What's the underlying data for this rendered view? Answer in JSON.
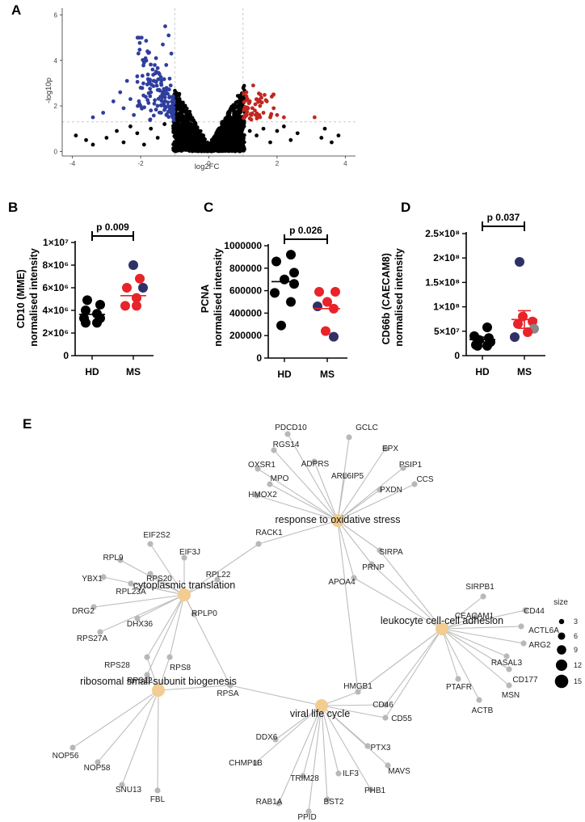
{
  "chart_data": [
    {
      "panel": "A",
      "type": "scatter",
      "title": "",
      "xlabel": "log2FC",
      "ylabel": "-log10p",
      "xlim": [
        -4.3,
        4.3
      ],
      "ylim": [
        -0.2,
        6.3
      ],
      "xticks": [
        "-4",
        "-2",
        "0",
        "2",
        "4"
      ],
      "yticks": [
        "0",
        "2",
        "4",
        "6"
      ],
      "thresholds": {
        "log2fc": [
          -1,
          1
        ],
        "neglog10p": 1.3
      },
      "colors": {
        "down": "#2f3e9e",
        "up": "#c0271f",
        "ns": "#000000",
        "threshold": "#cccccc"
      },
      "series": [
        {
          "name": "down",
          "points": [
            [
              -3.4,
              1.5
            ],
            [
              -3.1,
              1.7
            ],
            [
              -2.8,
              2.2
            ],
            [
              -2.6,
              2.6
            ],
            [
              -2.5,
              1.9
            ],
            [
              -2.4,
              3.1
            ],
            [
              -2.3,
              2.3
            ],
            [
              -2.2,
              1.6
            ],
            [
              -2.1,
              3.3
            ],
            [
              -2.0,
              2.8
            ],
            [
              -1.9,
              3.9
            ],
            [
              -1.85,
              2.4
            ],
            [
              -1.8,
              4.4
            ],
            [
              -1.75,
              3.0
            ],
            [
              -1.7,
              1.8
            ],
            [
              -1.65,
              3.6
            ],
            [
              -1.6,
              2.1
            ],
            [
              -1.55,
              4.1
            ],
            [
              -1.5,
              2.7
            ],
            [
              -1.45,
              3.4
            ],
            [
              -1.4,
              1.7
            ],
            [
              -1.35,
              4.7
            ],
            [
              -1.3,
              2.5
            ],
            [
              -1.28,
              5.5
            ],
            [
              -1.25,
              3.8
            ],
            [
              -1.2,
              2.0
            ],
            [
              -1.18,
              5.1
            ],
            [
              -1.15,
              3.2
            ],
            [
              -1.12,
              2.9
            ],
            [
              -1.1,
              4.3
            ],
            [
              -1.08,
              1.6
            ],
            [
              -1.05,
              2.3
            ],
            [
              -1.4,
              3.0
            ],
            [
              -1.6,
              3.1
            ],
            [
              -2.0,
              2.0
            ],
            [
              -1.7,
              2.6
            ]
          ]
        },
        {
          "name": "up",
          "points": [
            [
              1.05,
              1.5
            ],
            [
              1.1,
              2.6
            ],
            [
              1.15,
              1.9
            ],
            [
              1.2,
              2.2
            ],
            [
              1.25,
              1.6
            ],
            [
              1.3,
              2.9
            ],
            [
              1.35,
              1.8
            ],
            [
              1.4,
              2.3
            ],
            [
              1.5,
              2.0
            ],
            [
              1.6,
              1.7
            ],
            [
              1.7,
              2.2
            ],
            [
              1.8,
              1.5
            ],
            [
              1.9,
              1.9
            ],
            [
              2.0,
              1.6
            ],
            [
              2.2,
              1.5
            ],
            [
              3.1,
              1.5
            ],
            [
              1.2,
              1.45
            ],
            [
              1.45,
              1.55
            ]
          ]
        },
        {
          "name": "ns",
          "points": [
            [
              -3.9,
              0.7
            ],
            [
              -3.6,
              0.5
            ],
            [
              -3.4,
              0.3
            ],
            [
              -3.0,
              0.6
            ],
            [
              -2.7,
              0.9
            ],
            [
              -2.5,
              0.4
            ],
            [
              -2.3,
              1.1
            ],
            [
              -2.1,
              0.8
            ],
            [
              -1.9,
              0.3
            ],
            [
              -1.7,
              1.0
            ],
            [
              -1.5,
              0.6
            ],
            [
              -1.3,
              1.2
            ],
            [
              3.3,
              0.6
            ],
            [
              3.6,
              0.4
            ],
            [
              3.8,
              0.7
            ],
            [
              3.4,
              1.0
            ],
            [
              2.6,
              0.8
            ],
            [
              2.4,
              0.5
            ],
            [
              2.2,
              1.1
            ],
            [
              2.0,
              0.9
            ],
            [
              1.8,
              0.4
            ],
            [
              1.6,
              1.0
            ],
            [
              1.4,
              0.7
            ],
            [
              1.2,
              0.9
            ]
          ]
        }
      ],
      "cloud_count": 1400
    },
    {
      "panel": "B",
      "type": "scatter",
      "title": "p 0.009",
      "xlabel": "",
      "ylabel": "CD10  (MME)\nnormalised intensity",
      "categories": [
        "HD",
        "MS"
      ],
      "ylim": [
        0,
        10000000
      ],
      "ytick_values": [
        0,
        2000000,
        4000000,
        6000000,
        8000000,
        10000000
      ],
      "ytick_labels": [
        "0",
        "2×10⁶",
        "4×10⁶",
        "6×10⁶",
        "8×10⁶",
        "1×10⁷"
      ],
      "series": [
        {
          "name": "HD",
          "values": [
            4900000,
            4500000,
            4000000,
            3700000,
            3300000,
            3300000,
            2900000,
            2900000
          ],
          "mean": 3650000,
          "colors": [
            "#000000",
            "#000000",
            "#000000",
            "#000000",
            "#000000",
            "#000000",
            "#000000",
            "#000000"
          ]
        },
        {
          "name": "MS",
          "values": [
            8000000,
            6800000,
            6000000,
            6000000,
            5100000,
            4400000,
            4400000
          ],
          "mean": 5300000,
          "colors": [
            "#2f3067",
            "#e8232a",
            "#e8232a",
            "#2f3067",
            "#e8232a",
            "#e8232a",
            "#e8232a"
          ]
        }
      ]
    },
    {
      "panel": "C",
      "type": "scatter",
      "title": "p 0.026",
      "xlabel": "",
      "ylabel": "PCNA\nnormalised intensity",
      "categories": [
        "HD",
        "MS"
      ],
      "ylim": [
        0,
        1000000
      ],
      "ytick_values": [
        0,
        200000,
        400000,
        600000,
        800000,
        1000000
      ],
      "ytick_labels": [
        "0",
        "200000",
        "400000",
        "600000",
        "800000",
        "1000000"
      ],
      "series": [
        {
          "name": "HD",
          "values": [
            920000,
            860000,
            760000,
            700000,
            660000,
            580000,
            500000,
            290000
          ],
          "mean": 680000,
          "colors": [
            "#000000",
            "#000000",
            "#000000",
            "#000000",
            "#000000",
            "#000000",
            "#000000",
            "#000000"
          ]
        },
        {
          "name": "MS",
          "values": [
            590000,
            590000,
            500000,
            460000,
            440000,
            240000,
            190000
          ],
          "mean": 440000,
          "colors": [
            "#e8232a",
            "#e8232a",
            "#e8232a",
            "#2f3067",
            "#e8232a",
            "#e8232a",
            "#2f3067"
          ]
        }
      ]
    },
    {
      "panel": "D",
      "type": "scatter",
      "title": "p 0.037",
      "xlabel": "",
      "ylabel": "CD66b (CAECAM8)\nnormalised intensity",
      "categories": [
        "HD",
        "MS"
      ],
      "ylim": [
        0,
        250000000
      ],
      "ytick_values": [
        0,
        50000000,
        100000000,
        150000000,
        200000000,
        250000000
      ],
      "ytick_labels": [
        "0",
        "5×10⁷",
        "1×10⁸",
        "1.5×10⁸",
        "2×10⁸",
        "2.5×10⁸"
      ],
      "series": [
        {
          "name": "HD",
          "values": [
            58000000,
            40000000,
            36000000,
            32000000,
            28000000,
            22000000,
            20000000,
            20000000
          ],
          "mean": 33000000,
          "sem": 5000000,
          "colors": [
            "#000000",
            "#000000",
            "#000000",
            "#000000",
            "#000000",
            "#000000",
            "#000000",
            "#000000"
          ]
        },
        {
          "name": "MS",
          "values": [
            192000000,
            80000000,
            70000000,
            65000000,
            55000000,
            48000000,
            38000000
          ],
          "mean": 74000000,
          "sem": 18000000,
          "colors": [
            "#2f3067",
            "#e8232a",
            "#e8232a",
            "#e8232a",
            "#888888",
            "#e8232a",
            "#2f3067"
          ]
        }
      ]
    },
    {
      "panel": "E",
      "type": "network",
      "terms": [
        {
          "id": "oxidative",
          "label": "response to oxidative stress"
        },
        {
          "id": "translation",
          "label": "cytoplasmic translation"
        },
        {
          "id": "adhesion",
          "label": "leukocyte cell-cell adhesion"
        },
        {
          "id": "ribosomal",
          "label": "ribosomal small subunit biogenesis"
        },
        {
          "id": "viral",
          "label": "viral life cycle"
        }
      ],
      "genes": [
        {
          "label": "PDCD10",
          "terms": [
            "oxidative"
          ]
        },
        {
          "label": "GCLC",
          "terms": [
            "oxidative"
          ]
        },
        {
          "label": "RGS14",
          "terms": [
            "oxidative"
          ]
        },
        {
          "label": "EPX",
          "terms": [
            "oxidative"
          ]
        },
        {
          "label": "ADPRS",
          "terms": [
            "oxidative"
          ]
        },
        {
          "label": "OXSR1",
          "terms": [
            "oxidative"
          ]
        },
        {
          "label": "PSIP1",
          "terms": [
            "oxidative"
          ]
        },
        {
          "label": "ARL6IP5",
          "terms": [
            "oxidative"
          ]
        },
        {
          "label": "MPO",
          "terms": [
            "oxidative"
          ]
        },
        {
          "label": "CCS",
          "terms": [
            "oxidative"
          ]
        },
        {
          "label": "PXDN",
          "terms": [
            "oxidative"
          ]
        },
        {
          "label": "HMOX2",
          "terms": [
            "oxidative"
          ]
        },
        {
          "label": "RACK1",
          "terms": [
            "oxidative",
            "translation"
          ]
        },
        {
          "label": "SIRPA",
          "terms": [
            "oxidative",
            "adhesion"
          ]
        },
        {
          "label": "PRNP",
          "terms": [
            "oxidative",
            "adhesion"
          ]
        },
        {
          "label": "APOA4",
          "terms": [
            "oxidative",
            "adhesion"
          ]
        },
        {
          "label": "HMGB1",
          "terms": [
            "oxidative",
            "adhesion",
            "viral"
          ]
        },
        {
          "label": "EIF2S2",
          "terms": [
            "translation"
          ]
        },
        {
          "label": "EIF3J",
          "terms": [
            "translation"
          ]
        },
        {
          "label": "RPL9",
          "terms": [
            "translation"
          ]
        },
        {
          "label": "YBX1",
          "terms": [
            "translation"
          ]
        },
        {
          "label": "RPS20",
          "terms": [
            "translation"
          ]
        },
        {
          "label": "RPL22",
          "terms": [
            "translation"
          ]
        },
        {
          "label": "RPL23A",
          "terms": [
            "translation"
          ]
        },
        {
          "label": "DRG2",
          "terms": [
            "translation"
          ]
        },
        {
          "label": "DHX36",
          "terms": [
            "translation"
          ]
        },
        {
          "label": "RPLP0",
          "terms": [
            "translation"
          ]
        },
        {
          "label": "RPS27A",
          "terms": [
            "translation"
          ]
        },
        {
          "label": "RPS28",
          "terms": [
            "translation",
            "ribosomal"
          ]
        },
        {
          "label": "RPS8",
          "terms": [
            "translation",
            "ribosomal"
          ]
        },
        {
          "label": "RPS12",
          "terms": [
            "translation",
            "ribosomal"
          ]
        },
        {
          "label": "RPSA",
          "terms": [
            "translation",
            "ribosomal",
            "viral"
          ]
        },
        {
          "label": "SIRPB1",
          "terms": [
            "adhesion"
          ]
        },
        {
          "label": "CEACAM1",
          "terms": [
            "adhesion"
          ]
        },
        {
          "label": "CD44",
          "terms": [
            "adhesion"
          ]
        },
        {
          "label": "ACTL6A",
          "terms": [
            "adhesion"
          ]
        },
        {
          "label": "ARG2",
          "terms": [
            "adhesion"
          ]
        },
        {
          "label": "RASAL3",
          "terms": [
            "adhesion"
          ]
        },
        {
          "label": "CD177",
          "terms": [
            "adhesion"
          ]
        },
        {
          "label": "PTAFR",
          "terms": [
            "adhesion"
          ]
        },
        {
          "label": "MSN",
          "terms": [
            "adhesion"
          ]
        },
        {
          "label": "ACTB",
          "terms": [
            "adhesion"
          ]
        },
        {
          "label": "CD46",
          "terms": [
            "adhesion",
            "viral"
          ]
        },
        {
          "label": "CD55",
          "terms": [
            "adhesion",
            "viral"
          ]
        },
        {
          "label": "NOP56",
          "terms": [
            "ribosomal"
          ]
        },
        {
          "label": "NOP58",
          "terms": [
            "ribosomal"
          ]
        },
        {
          "label": "SNU13",
          "terms": [
            "ribosomal"
          ]
        },
        {
          "label": "FBL",
          "terms": [
            "ribosomal"
          ]
        },
        {
          "label": "DDX6",
          "terms": [
            "viral"
          ]
        },
        {
          "label": "CHMP1B",
          "terms": [
            "viral"
          ]
        },
        {
          "label": "PTX3",
          "terms": [
            "viral"
          ]
        },
        {
          "label": "MAVS",
          "terms": [
            "viral"
          ]
        },
        {
          "label": "ILF3",
          "terms": [
            "viral"
          ]
        },
        {
          "label": "TRIM28",
          "terms": [
            "viral"
          ]
        },
        {
          "label": "PHB1",
          "terms": [
            "viral"
          ]
        },
        {
          "label": "RAB1A",
          "terms": [
            "viral"
          ]
        },
        {
          "label": "BST2",
          "terms": [
            "viral"
          ]
        },
        {
          "label": "PPID",
          "terms": [
            "viral"
          ]
        }
      ],
      "legend": {
        "title": "size",
        "values": [
          3,
          6,
          9,
          12,
          15
        ]
      },
      "colors": {
        "term_node": "#f2cc90",
        "gene_node": "#b8b8b8",
        "edge": "#bdbdbd"
      }
    }
  ],
  "panel_labels": {
    "A": "A",
    "B": "B",
    "C": "C",
    "D": "D",
    "E": "E"
  }
}
